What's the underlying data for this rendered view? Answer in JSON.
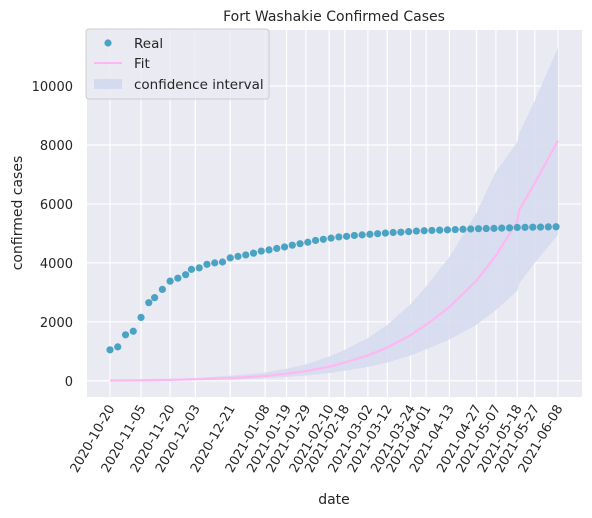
{
  "chart_data": {
    "type": "scatter",
    "title": "Fort Washakie Confirmed Cases",
    "xlabel": "date",
    "ylabel": "confirmed cases",
    "xtick_labels": [
      "2020-10-20",
      "2020-11-05",
      "2020-11-20",
      "2020-12-03",
      "2020-12-21",
      "2021-01-08",
      "2021-01-19",
      "2021-01-29",
      "2021-02-10",
      "2021-02-18",
      "2021-03-02",
      "2021-03-12",
      "2021-03-24",
      "2021-04-01",
      "2021-04-13",
      "2021-04-27",
      "2021-05-07",
      "2021-05-18",
      "2021-05-27",
      "2021-06-08"
    ],
    "yticks": [
      0,
      2000,
      4000,
      6000,
      8000,
      10000
    ],
    "ylim": [
      -550,
      11900
    ],
    "grid": true,
    "legend_position": "top-left",
    "legend": [
      {
        "name": "Real",
        "kind": "marker"
      },
      {
        "name": "Fit",
        "kind": "line"
      },
      {
        "name": "confidence interval",
        "kind": "patch"
      }
    ],
    "colors": {
      "real": "#4aa3c3",
      "fit": "#ffb7f2",
      "ci": "#d5dbef",
      "plot_bg": "#eaeaf2",
      "grid": "#ffffff"
    },
    "series": [
      {
        "name": "Real",
        "x": [
          "2020-10-20",
          "2020-10-24",
          "2020-10-28",
          "2020-11-01",
          "2020-11-05",
          "2020-11-09",
          "2020-11-12",
          "2020-11-16",
          "2020-11-20",
          "2020-11-24",
          "2020-11-28",
          "2020-12-01",
          "2020-12-05",
          "2020-12-09",
          "2020-12-13",
          "2020-12-17",
          "2020-12-21",
          "2020-12-25",
          "2020-12-29",
          "2021-01-02",
          "2021-01-06",
          "2021-01-10",
          "2021-01-14",
          "2021-01-18",
          "2021-01-22",
          "2021-01-26",
          "2021-01-30",
          "2021-02-03",
          "2021-02-07",
          "2021-02-11",
          "2021-02-15",
          "2021-02-19",
          "2021-02-23",
          "2021-02-27",
          "2021-03-03",
          "2021-03-07",
          "2021-03-11",
          "2021-03-15",
          "2021-03-19",
          "2021-03-23",
          "2021-03-27",
          "2021-03-31",
          "2021-04-04",
          "2021-04-08",
          "2021-04-12",
          "2021-04-16",
          "2021-04-20",
          "2021-04-24",
          "2021-04-28",
          "2021-05-02",
          "2021-05-06",
          "2021-05-10",
          "2021-05-14",
          "2021-05-18",
          "2021-05-22",
          "2021-05-26",
          "2021-05-30",
          "2021-06-03",
          "2021-06-07"
        ],
        "values": [
          1050,
          1150,
          1560,
          1680,
          2150,
          2650,
          2820,
          3100,
          3380,
          3480,
          3600,
          3780,
          3830,
          3950,
          4000,
          4030,
          4170,
          4220,
          4270,
          4330,
          4400,
          4440,
          4490,
          4540,
          4600,
          4650,
          4700,
          4760,
          4800,
          4840,
          4880,
          4900,
          4930,
          4950,
          4970,
          4990,
          5010,
          5030,
          5040,
          5060,
          5080,
          5090,
          5100,
          5110,
          5120,
          5130,
          5140,
          5150,
          5160,
          5165,
          5170,
          5180,
          5190,
          5200,
          5205,
          5210,
          5215,
          5220,
          5225
        ]
      },
      {
        "name": "Fit",
        "x": [
          "2020-10-20",
          "2020-11-05",
          "2020-11-20",
          "2020-12-03",
          "2020-12-21",
          "2021-01-08",
          "2021-01-19",
          "2021-01-29",
          "2021-02-10",
          "2021-02-18",
          "2021-03-02",
          "2021-03-12",
          "2021-03-24",
          "2021-04-01",
          "2021-04-13",
          "2021-04-27",
          "2021-05-07",
          "2021-05-18",
          "2021-05-19",
          "2021-05-27",
          "2021-06-08"
        ],
        "values": [
          10,
          18,
          30,
          50,
          90,
          160,
          240,
          330,
          480,
          620,
          860,
          1130,
          1550,
          1900,
          2500,
          3400,
          4250,
          5400,
          5800,
          6700,
          8150
        ],
        "ci_lower": [
          0,
          5,
          10,
          20,
          40,
          80,
          130,
          180,
          260,
          340,
          470,
          620,
          860,
          1060,
          1400,
          1900,
          2400,
          3050,
          3300,
          4000,
          4950
        ],
        "ci_upper": [
          30,
          50,
          70,
          100,
          170,
          280,
          410,
          560,
          820,
          1050,
          1450,
          1900,
          2600,
          3200,
          4200,
          5700,
          7100,
          8100,
          8400,
          9500,
          11300
        ]
      }
    ]
  }
}
